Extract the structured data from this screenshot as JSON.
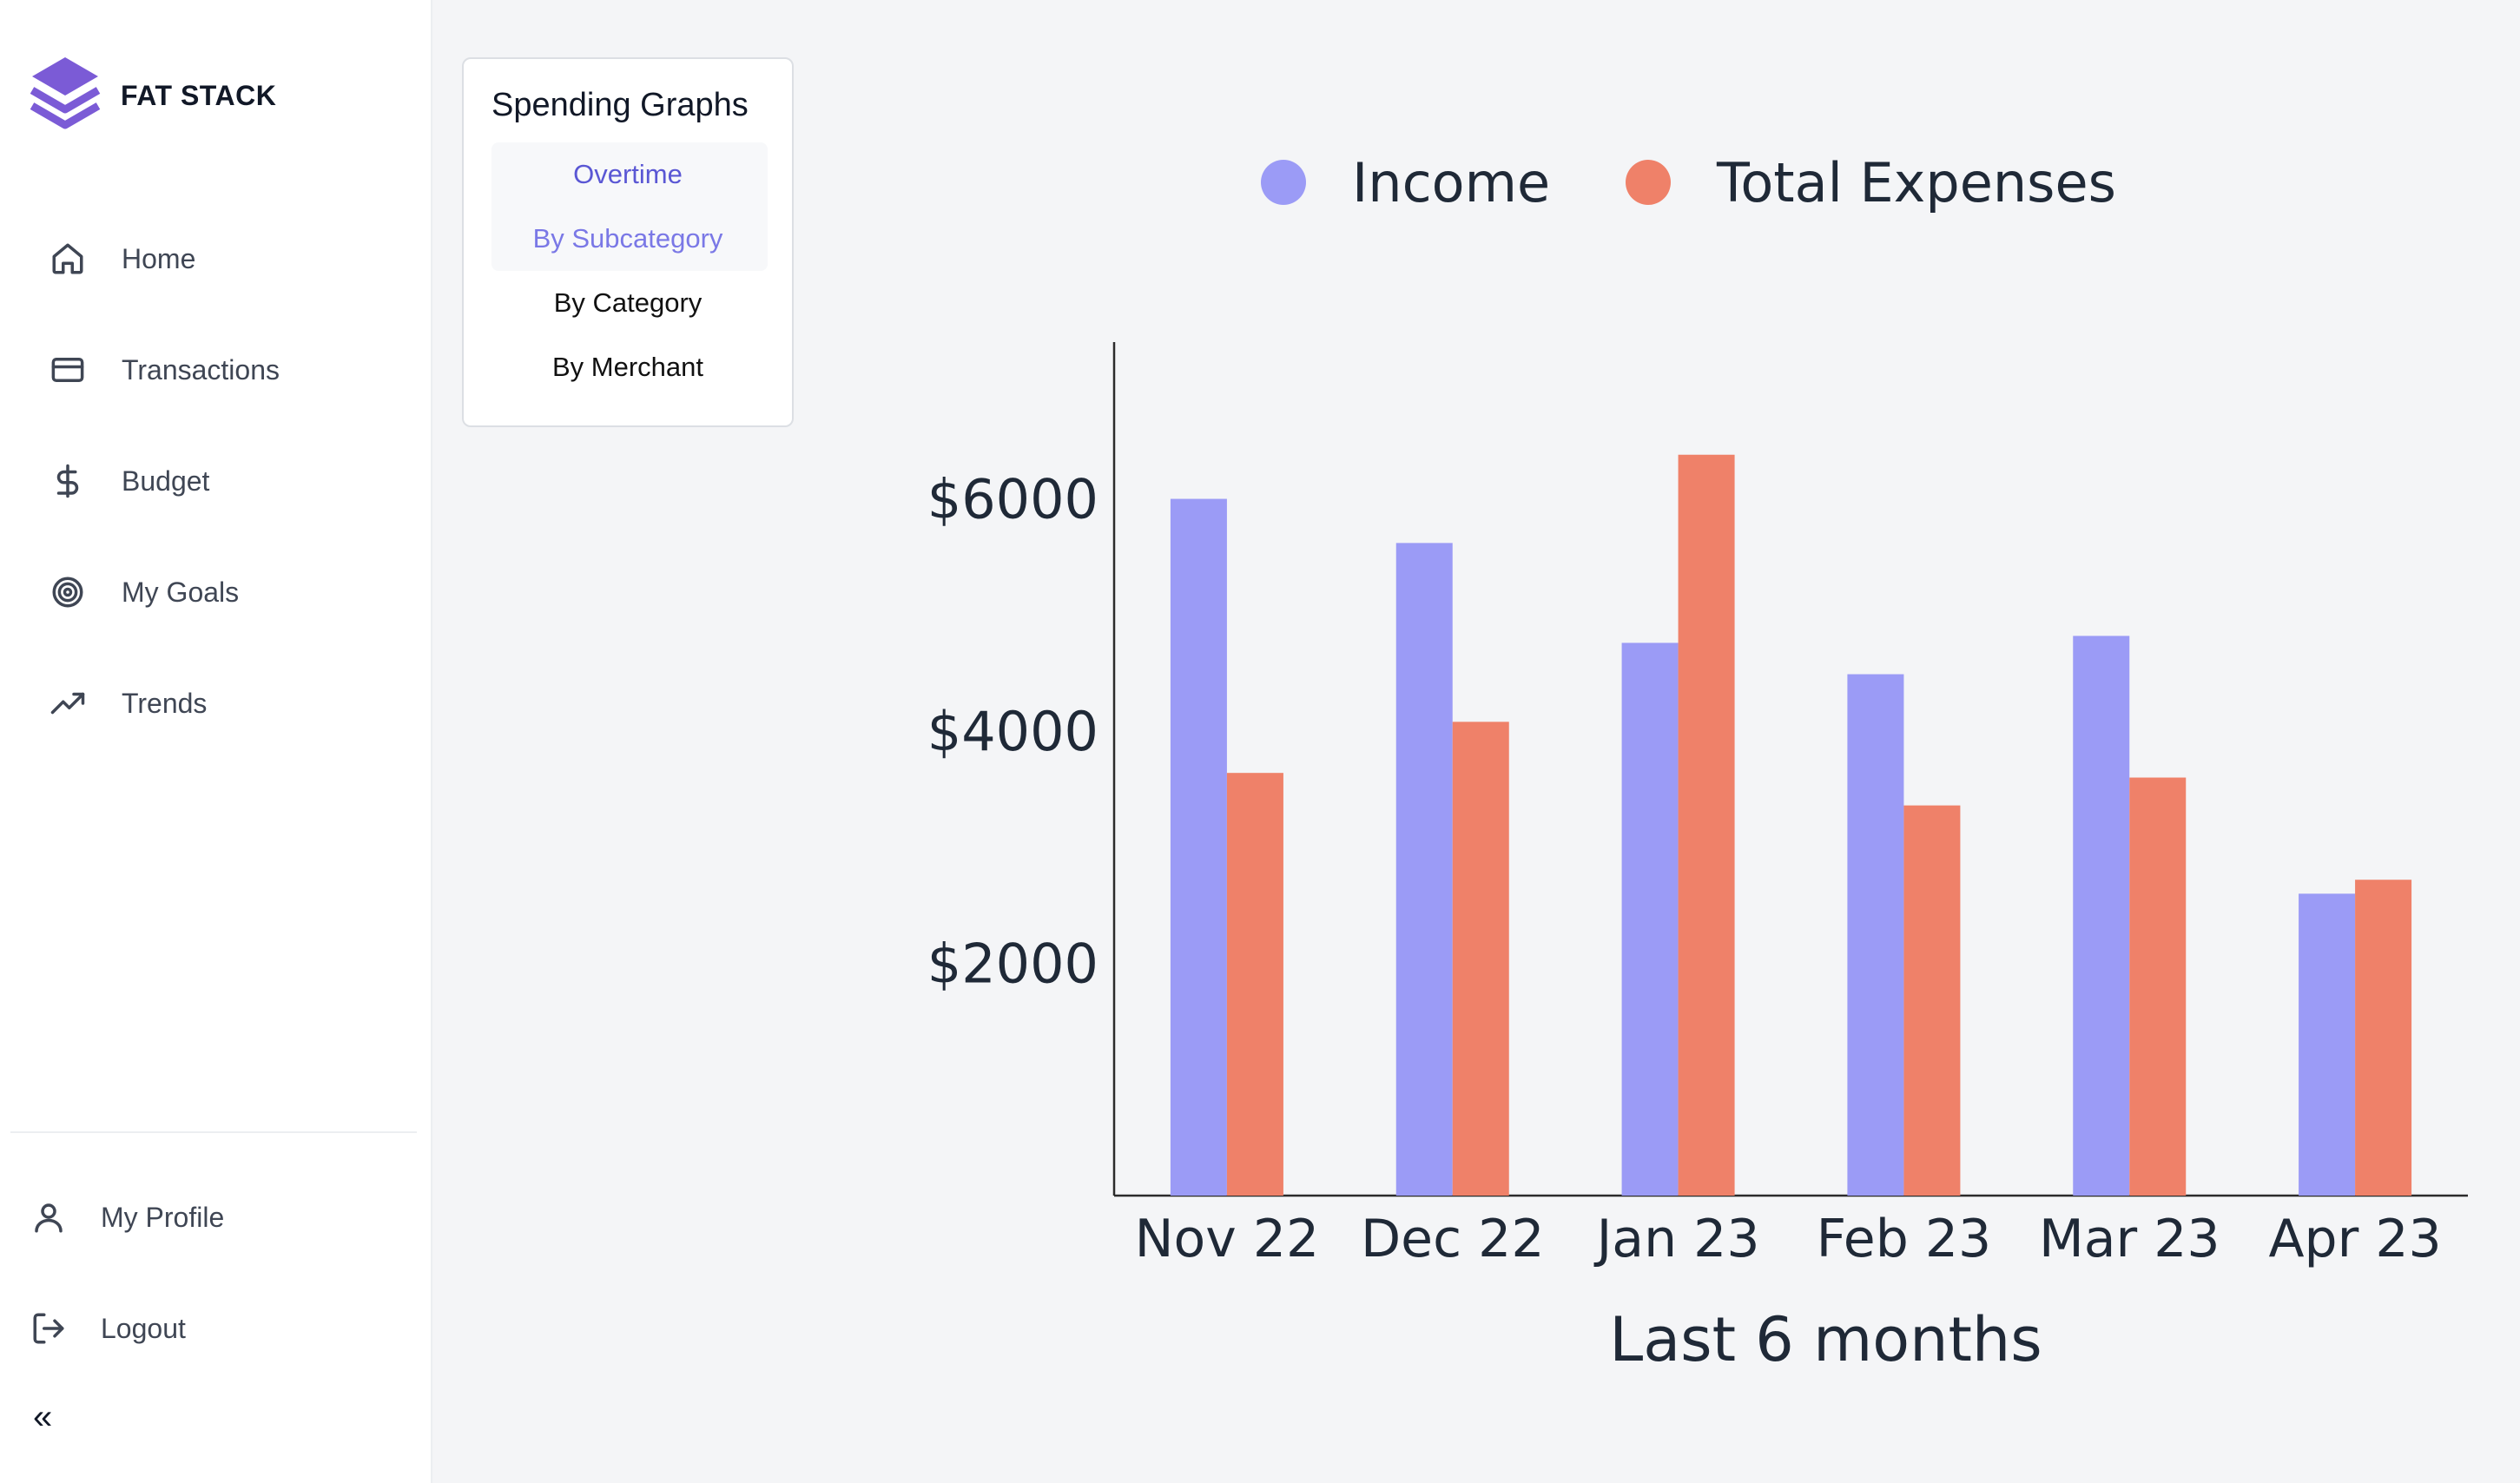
{
  "brand": {
    "name": "FAT STACK"
  },
  "nav": {
    "items": [
      {
        "label": "Home",
        "icon": "home-icon"
      },
      {
        "label": "Transactions",
        "icon": "credit-card-icon"
      },
      {
        "label": "Budget",
        "icon": "dollar-icon"
      },
      {
        "label": "My Goals",
        "icon": "target-icon"
      },
      {
        "label": "Trends",
        "icon": "trending-up-icon"
      }
    ]
  },
  "account": {
    "profile_label": "My Profile",
    "logout_label": "Logout",
    "collapse_label": "«"
  },
  "graph_menu": {
    "title": "Spending Graphs",
    "options": [
      "Overtime",
      "By Subcategory",
      "By Category",
      "By Merchant"
    ]
  },
  "colors": {
    "income": "#9b9bf6",
    "expenses": "#ef8169",
    "accent": "#5a57d4",
    "logo": "#7b5bd6"
  },
  "chart_data": {
    "type": "bar",
    "categories": [
      "Nov 22",
      "Dec 22",
      "Jan 23",
      "Feb 23",
      "Mar 23",
      "Apr 23"
    ],
    "series": [
      {
        "name": "Income",
        "values": [
          6000,
          5620,
          4760,
          4490,
          4820,
          2600
        ]
      },
      {
        "name": "Total Expenses",
        "values": [
          3640,
          4080,
          6380,
          3360,
          3600,
          2720
        ]
      }
    ],
    "xlabel": "Last 6 months",
    "ylabel": "",
    "ylim": [
      0,
      7350
    ],
    "yticks": [
      2000,
      4000,
      6000
    ],
    "ytick_labels": [
      "$2000",
      "$4000",
      "$6000"
    ],
    "legend_position": "top",
    "grid": false
  }
}
